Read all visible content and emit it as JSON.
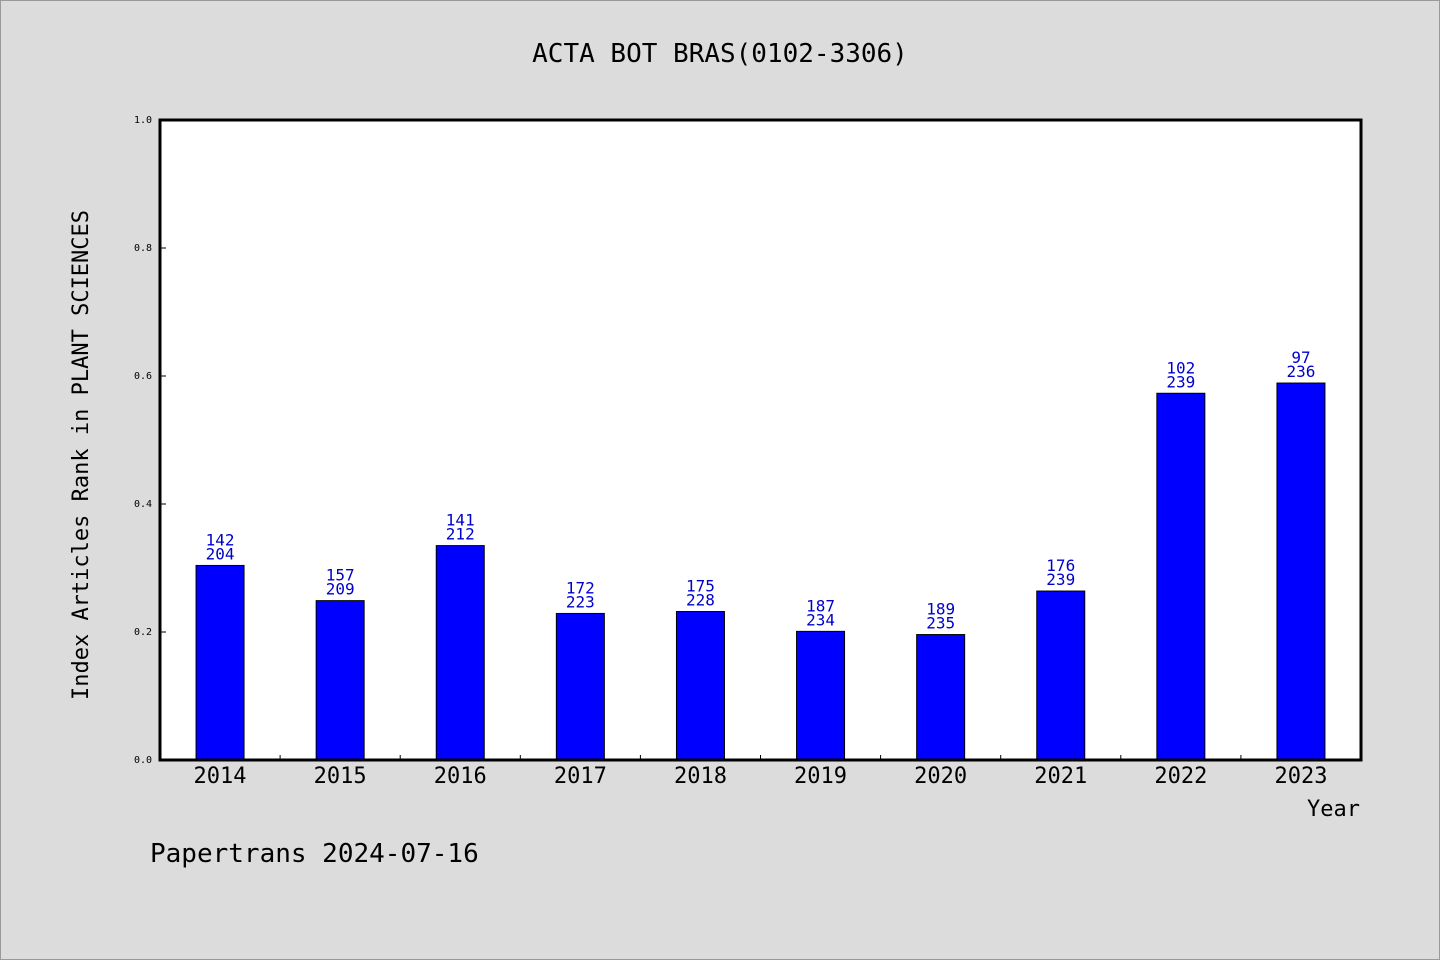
{
  "chart_data": {
    "type": "bar",
    "title": "ACTA BOT BRAS(0102-3306)",
    "xlabel": "Year",
    "ylabel": "Index Articles Rank in PLANT SCIENCES",
    "categories": [
      "2014",
      "2015",
      "2016",
      "2017",
      "2018",
      "2019",
      "2020",
      "2021",
      "2022",
      "2023"
    ],
    "values": [
      0.304,
      0.249,
      0.335,
      0.229,
      0.232,
      0.201,
      0.196,
      0.264,
      0.573,
      0.589
    ],
    "labels_top": [
      "142",
      "157",
      "141",
      "172",
      "175",
      "187",
      "189",
      "176",
      "102",
      "97"
    ],
    "labels_bottom": [
      "204",
      "209",
      "212",
      "223",
      "228",
      "234",
      "235",
      "239",
      "239",
      "236"
    ],
    "yticks": [
      "0.0",
      "0.2",
      "0.4",
      "0.6",
      "0.8",
      "1.0"
    ],
    "ylim": [
      0,
      1.0
    ],
    "grid": false,
    "bar_color": "#0000ff",
    "label_color": "#0000cc"
  },
  "footer": "Papertrans 2024-07-16"
}
